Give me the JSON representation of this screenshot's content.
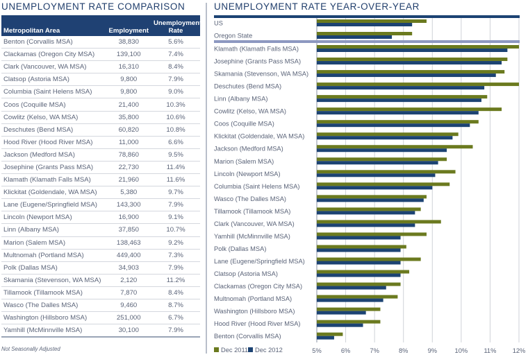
{
  "left_panel": {
    "title": "UNEMPLOYMENT RATE COMPARISON",
    "columns": [
      "Metropolitan Area",
      "Employment",
      "Unemployment Rate"
    ],
    "rows": [
      {
        "area": "Benton (Corvallis MSA)",
        "employment": "38,830",
        "rate": "5.6%"
      },
      {
        "area": "Clackamas (Oregon City MSA)",
        "employment": "139,100",
        "rate": "7.4%"
      },
      {
        "area": "Clark (Vancouver, WA MSA)",
        "employment": "16,310",
        "rate": "8.4%"
      },
      {
        "area": "Clatsop (Astoria MSA)",
        "employment": "9,800",
        "rate": "7.9%"
      },
      {
        "area": "Columbia (Saint Helens MSA)",
        "employment": "9,800",
        "rate": "9.0%"
      },
      {
        "area": "Coos (Coquille MSA)",
        "employment": "21,400",
        "rate": "10.3%"
      },
      {
        "area": "Cowlitz (Kelso, WA MSA)",
        "employment": "35,800",
        "rate": "10.6%"
      },
      {
        "area": "Deschutes (Bend MSA)",
        "employment": "60,820",
        "rate": "10.8%"
      },
      {
        "area": "Hood River (Hood River MSA)",
        "employment": "11,000",
        "rate": "6.6%"
      },
      {
        "area": "Jackson (Medford MSA)",
        "employment": "78,860",
        "rate": "9.5%"
      },
      {
        "area": "Josephine (Grants Pass MSA)",
        "employment": "22,730",
        "rate": "11.4%"
      },
      {
        "area": "Klamath (Klamath Falls MSA)",
        "employment": "21,960",
        "rate": "11.6%"
      },
      {
        "area": "Klickitat (Goldendale, WA MSA)",
        "employment": "5,380",
        "rate": "9.7%"
      },
      {
        "area": "Lane (Eugene/Springfield MSA)",
        "employment": "143,300",
        "rate": "7.9%"
      },
      {
        "area": "Lincoln (Newport MSA)",
        "employment": "16,900",
        "rate": "9.1%"
      },
      {
        "area": "Linn (Albany MSA)",
        "employment": "37,850",
        "rate": "10.7%"
      },
      {
        "area": "Marion (Salem MSA)",
        "employment": "138,463",
        "rate": "9.2%"
      },
      {
        "area": "Multnomah (Portland MSA)",
        "employment": "449,400",
        "rate": "7.3%"
      },
      {
        "area": "Polk (Dallas MSA)",
        "employment": "34,903",
        "rate": "7.9%"
      },
      {
        "area": "Skamania (Stevenson, WA MSA)",
        "employment": "2,120",
        "rate": "11.2%"
      },
      {
        "area": "Tillamook (Tillamook MSA)",
        "employment": "7,870",
        "rate": "8.4%"
      },
      {
        "area": "Wasco (The Dalles MSA)",
        "employment": "9,460",
        "rate": "8.7%"
      },
      {
        "area": "Washington (Hillsboro MSA)",
        "employment": "251,000",
        "rate": "6.7%"
      },
      {
        "area": "Yamhill (McMinnville MSA)",
        "employment": "30,100",
        "rate": "7.9%"
      }
    ],
    "footnote": "Not Seasonally Adjusted"
  },
  "colors": {
    "dec_2011": "#6b7a1f",
    "dec_2012": "#1c4373",
    "header_bg": "#1f4173",
    "separator": "#8d98c0",
    "grid": "#cfd2d8"
  },
  "chart_data": {
    "type": "bar",
    "orientation": "horizontal",
    "title": "UNEMPLOYMENT RATE YEAR-OVER-YEAR",
    "xlabel": "",
    "ylabel": "",
    "xlim": [
      5,
      12
    ],
    "x_ticks": [
      "5%",
      "6%",
      "7%",
      "8%",
      "9%",
      "10%",
      "11%",
      "12%"
    ],
    "grid": true,
    "legend_position": "bottom-left",
    "reference_groups": [
      "US",
      "Oregon State"
    ],
    "categories": [
      "US",
      "Oregon State",
      "Klamath (Klamath Falls MSA)",
      "Josephine (Grants Pass MSA)",
      "Skamania (Stevenson, WA MSA)",
      "Deschutes (Bend MSA)",
      "Linn (Albany MSA)",
      "Cowlitz (Kelso, WA MSA)",
      "Coos (Coquille MSA)",
      "Klickitat (Goldendale, WA MSA)",
      "Jackson (Medford MSA)",
      "Marion (Salem MSA)",
      "Lincoln (Newport MSA)",
      "Columbia (Saint Helens MSA)",
      "Wasco (The Dalles MSA)",
      "Tillamook (Tillamook MSA)",
      "Clark (Vancouver, WA MSA)",
      "Yamhill (McMinnville MSA)",
      "Polk (Dallas MSA)",
      "Lane (Eugene/Springfield MSA)",
      "Clatsop (Astoria MSA)",
      "Clackamas (Oregon City MSA)",
      "Multnomah (Portland MSA)",
      "Washington (Hillsboro MSA)",
      "Hood River (Hood River MSA)",
      "Benton (Corvallis MSA)"
    ],
    "series": [
      {
        "name": "Dec 2011",
        "values": [
          8.8,
          8.3,
          12.0,
          11.6,
          11.5,
          12.0,
          10.9,
          11.4,
          10.6,
          9.9,
          10.4,
          9.5,
          9.8,
          9.6,
          8.8,
          8.6,
          9.3,
          8.8,
          8.1,
          8.6,
          8.2,
          7.9,
          7.8,
          7.2,
          7.2,
          5.9
        ]
      },
      {
        "name": "Dec 2012",
        "values": [
          8.3,
          7.6,
          11.6,
          11.4,
          11.2,
          10.8,
          10.7,
          10.6,
          10.3,
          9.7,
          9.5,
          9.2,
          9.1,
          9.0,
          8.7,
          8.4,
          8.4,
          7.9,
          7.9,
          7.9,
          7.9,
          7.4,
          7.3,
          6.7,
          6.6,
          5.6
        ]
      }
    ]
  }
}
